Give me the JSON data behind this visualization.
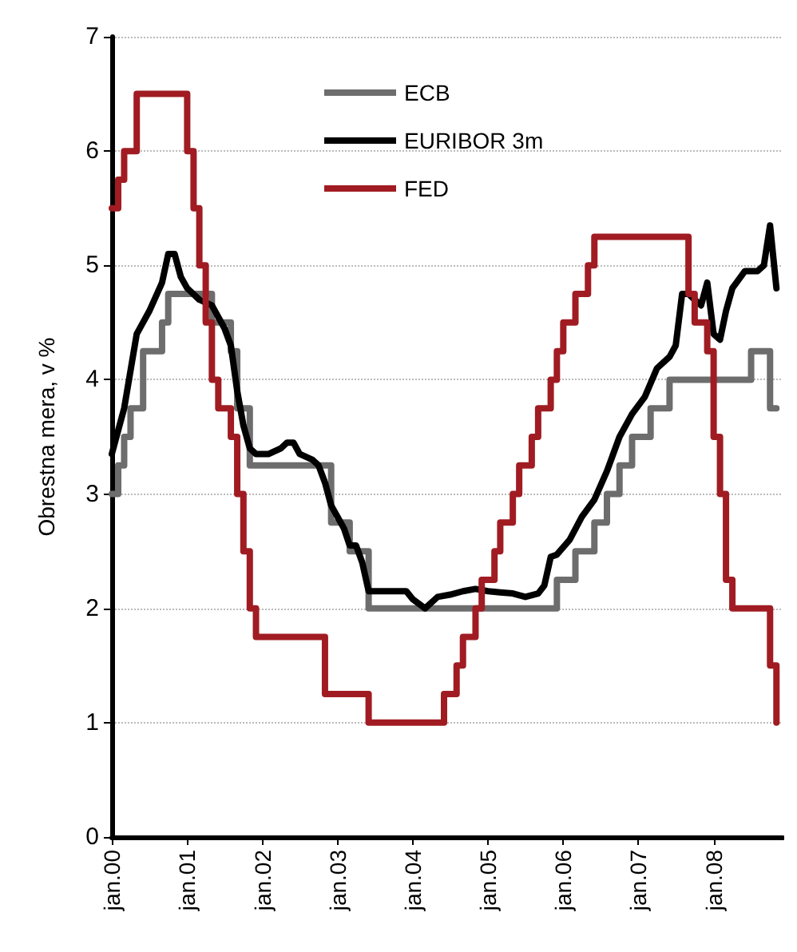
{
  "chart_data": {
    "type": "step",
    "ylabel": "Obrestna mera, v %",
    "xlim": [
      "2000-01",
      "2008-12"
    ],
    "xticks": [
      {
        "value": "2000-01",
        "label": "jan.00"
      },
      {
        "value": "2001-01",
        "label": "jan.01"
      },
      {
        "value": "2002-01",
        "label": "jan.02"
      },
      {
        "value": "2003-01",
        "label": "jan.03"
      },
      {
        "value": "2004-01",
        "label": "jan.04"
      },
      {
        "value": "2005-01",
        "label": "jan.05"
      },
      {
        "value": "2006-01",
        "label": "jan.06"
      },
      {
        "value": "2007-01",
        "label": "jan.07"
      },
      {
        "value": "2008-01",
        "label": "jan.08"
      }
    ],
    "ylim": [
      0,
      7
    ],
    "yticks": [
      0,
      1,
      2,
      3,
      4,
      5,
      6,
      7
    ],
    "grid": "y",
    "legend": "top",
    "marker": "none",
    "line_style": "solid",
    "series": [
      {
        "name": "ECB",
        "color": "#6d6d6d",
        "x": [
          "2000-01",
          "2000-02",
          "2000-03",
          "2000-04",
          "2000-06",
          "2000-09",
          "2000-10",
          "2001-05",
          "2001-08",
          "2001-09",
          "2001-11",
          "2002-12",
          "2003-03",
          "2003-06",
          "2005-12",
          "2006-03",
          "2006-06",
          "2006-08",
          "2006-10",
          "2006-12",
          "2007-03",
          "2007-06",
          "2008-07",
          "2008-10",
          "2008-11"
        ],
        "values": [
          3.0,
          3.25,
          3.5,
          3.75,
          4.25,
          4.5,
          4.75,
          4.5,
          4.25,
          3.75,
          3.25,
          2.75,
          2.5,
          2.0,
          2.25,
          2.5,
          2.75,
          3.0,
          3.25,
          3.5,
          3.75,
          4.0,
          4.25,
          3.75,
          3.75
        ]
      },
      {
        "name": "EURIBOR 3m",
        "type": "line",
        "color": "#000000",
        "x": [
          "2000-01",
          "2000-03",
          "2000-05",
          "2000-07",
          "2000-09",
          "2000-10",
          "2000-11",
          "2000-12",
          "2001-01",
          "2001-03",
          "2001-05",
          "2001-07",
          "2001-08",
          "2001-09",
          "2001-10",
          "2001-11",
          "2001-12",
          "2002-02",
          "2002-04",
          "2002-05",
          "2002-06",
          "2002-07",
          "2002-09",
          "2002-10",
          "2002-11",
          "2002-12",
          "2003-02",
          "2003-03",
          "2003-04",
          "2003-05",
          "2003-06",
          "2003-08",
          "2003-10",
          "2003-12",
          "2004-01",
          "2004-03",
          "2004-05",
          "2004-07",
          "2004-09",
          "2004-11",
          "2005-01",
          "2005-03",
          "2005-05",
          "2005-07",
          "2005-09",
          "2005-10",
          "2005-11",
          "2005-12",
          "2006-02",
          "2006-04",
          "2006-06",
          "2006-08",
          "2006-10",
          "2006-12",
          "2007-02",
          "2007-04",
          "2007-06",
          "2007-07",
          "2007-08",
          "2007-09",
          "2007-10",
          "2007-11",
          "2007-12",
          "2008-01",
          "2008-02",
          "2008-03",
          "2008-04",
          "2008-06",
          "2008-08",
          "2008-09",
          "2008-10",
          "2008-11"
        ],
        "values": [
          3.35,
          3.75,
          4.4,
          4.6,
          4.85,
          5.1,
          5.1,
          4.9,
          4.8,
          4.7,
          4.65,
          4.45,
          4.3,
          3.9,
          3.6,
          3.4,
          3.35,
          3.35,
          3.4,
          3.45,
          3.45,
          3.35,
          3.3,
          3.25,
          3.1,
          2.9,
          2.7,
          2.55,
          2.55,
          2.4,
          2.15,
          2.15,
          2.15,
          2.15,
          2.08,
          2.0,
          2.1,
          2.12,
          2.15,
          2.17,
          2.15,
          2.14,
          2.13,
          2.1,
          2.13,
          2.2,
          2.45,
          2.47,
          2.6,
          2.8,
          2.95,
          3.2,
          3.5,
          3.7,
          3.85,
          4.1,
          4.2,
          4.3,
          4.75,
          4.75,
          4.7,
          4.65,
          4.85,
          4.4,
          4.35,
          4.6,
          4.8,
          4.95,
          4.95,
          5.0,
          5.35,
          4.8
        ]
      },
      {
        "name": "FED",
        "color": "#a01c22",
        "x": [
          "2000-01",
          "2000-02",
          "2000-03",
          "2000-05",
          "2001-01",
          "2001-02",
          "2001-03",
          "2001-04",
          "2001-05",
          "2001-06",
          "2001-08",
          "2001-09",
          "2001-10",
          "2001-11",
          "2001-12",
          "2002-11",
          "2003-06",
          "2004-06",
          "2004-08",
          "2004-09",
          "2004-11",
          "2004-12",
          "2005-02",
          "2005-03",
          "2005-05",
          "2005-06",
          "2005-08",
          "2005-09",
          "2005-11",
          "2005-12",
          "2006-01",
          "2006-03",
          "2006-05",
          "2006-06",
          "2007-09",
          "2007-10",
          "2007-12",
          "2008-01",
          "2008-02",
          "2008-03",
          "2008-04",
          "2008-10",
          "2008-11"
        ],
        "values": [
          5.5,
          5.75,
          6.0,
          6.5,
          6.0,
          5.5,
          5.0,
          4.5,
          4.0,
          3.75,
          3.5,
          3.0,
          2.5,
          2.0,
          1.75,
          1.25,
          1.0,
          1.25,
          1.5,
          1.75,
          2.0,
          2.25,
          2.5,
          2.75,
          3.0,
          3.25,
          3.5,
          3.75,
          4.0,
          4.25,
          4.5,
          4.75,
          5.0,
          5.25,
          4.75,
          4.5,
          4.25,
          3.5,
          3.0,
          2.25,
          2.0,
          1.5,
          1.0
        ]
      }
    ]
  }
}
